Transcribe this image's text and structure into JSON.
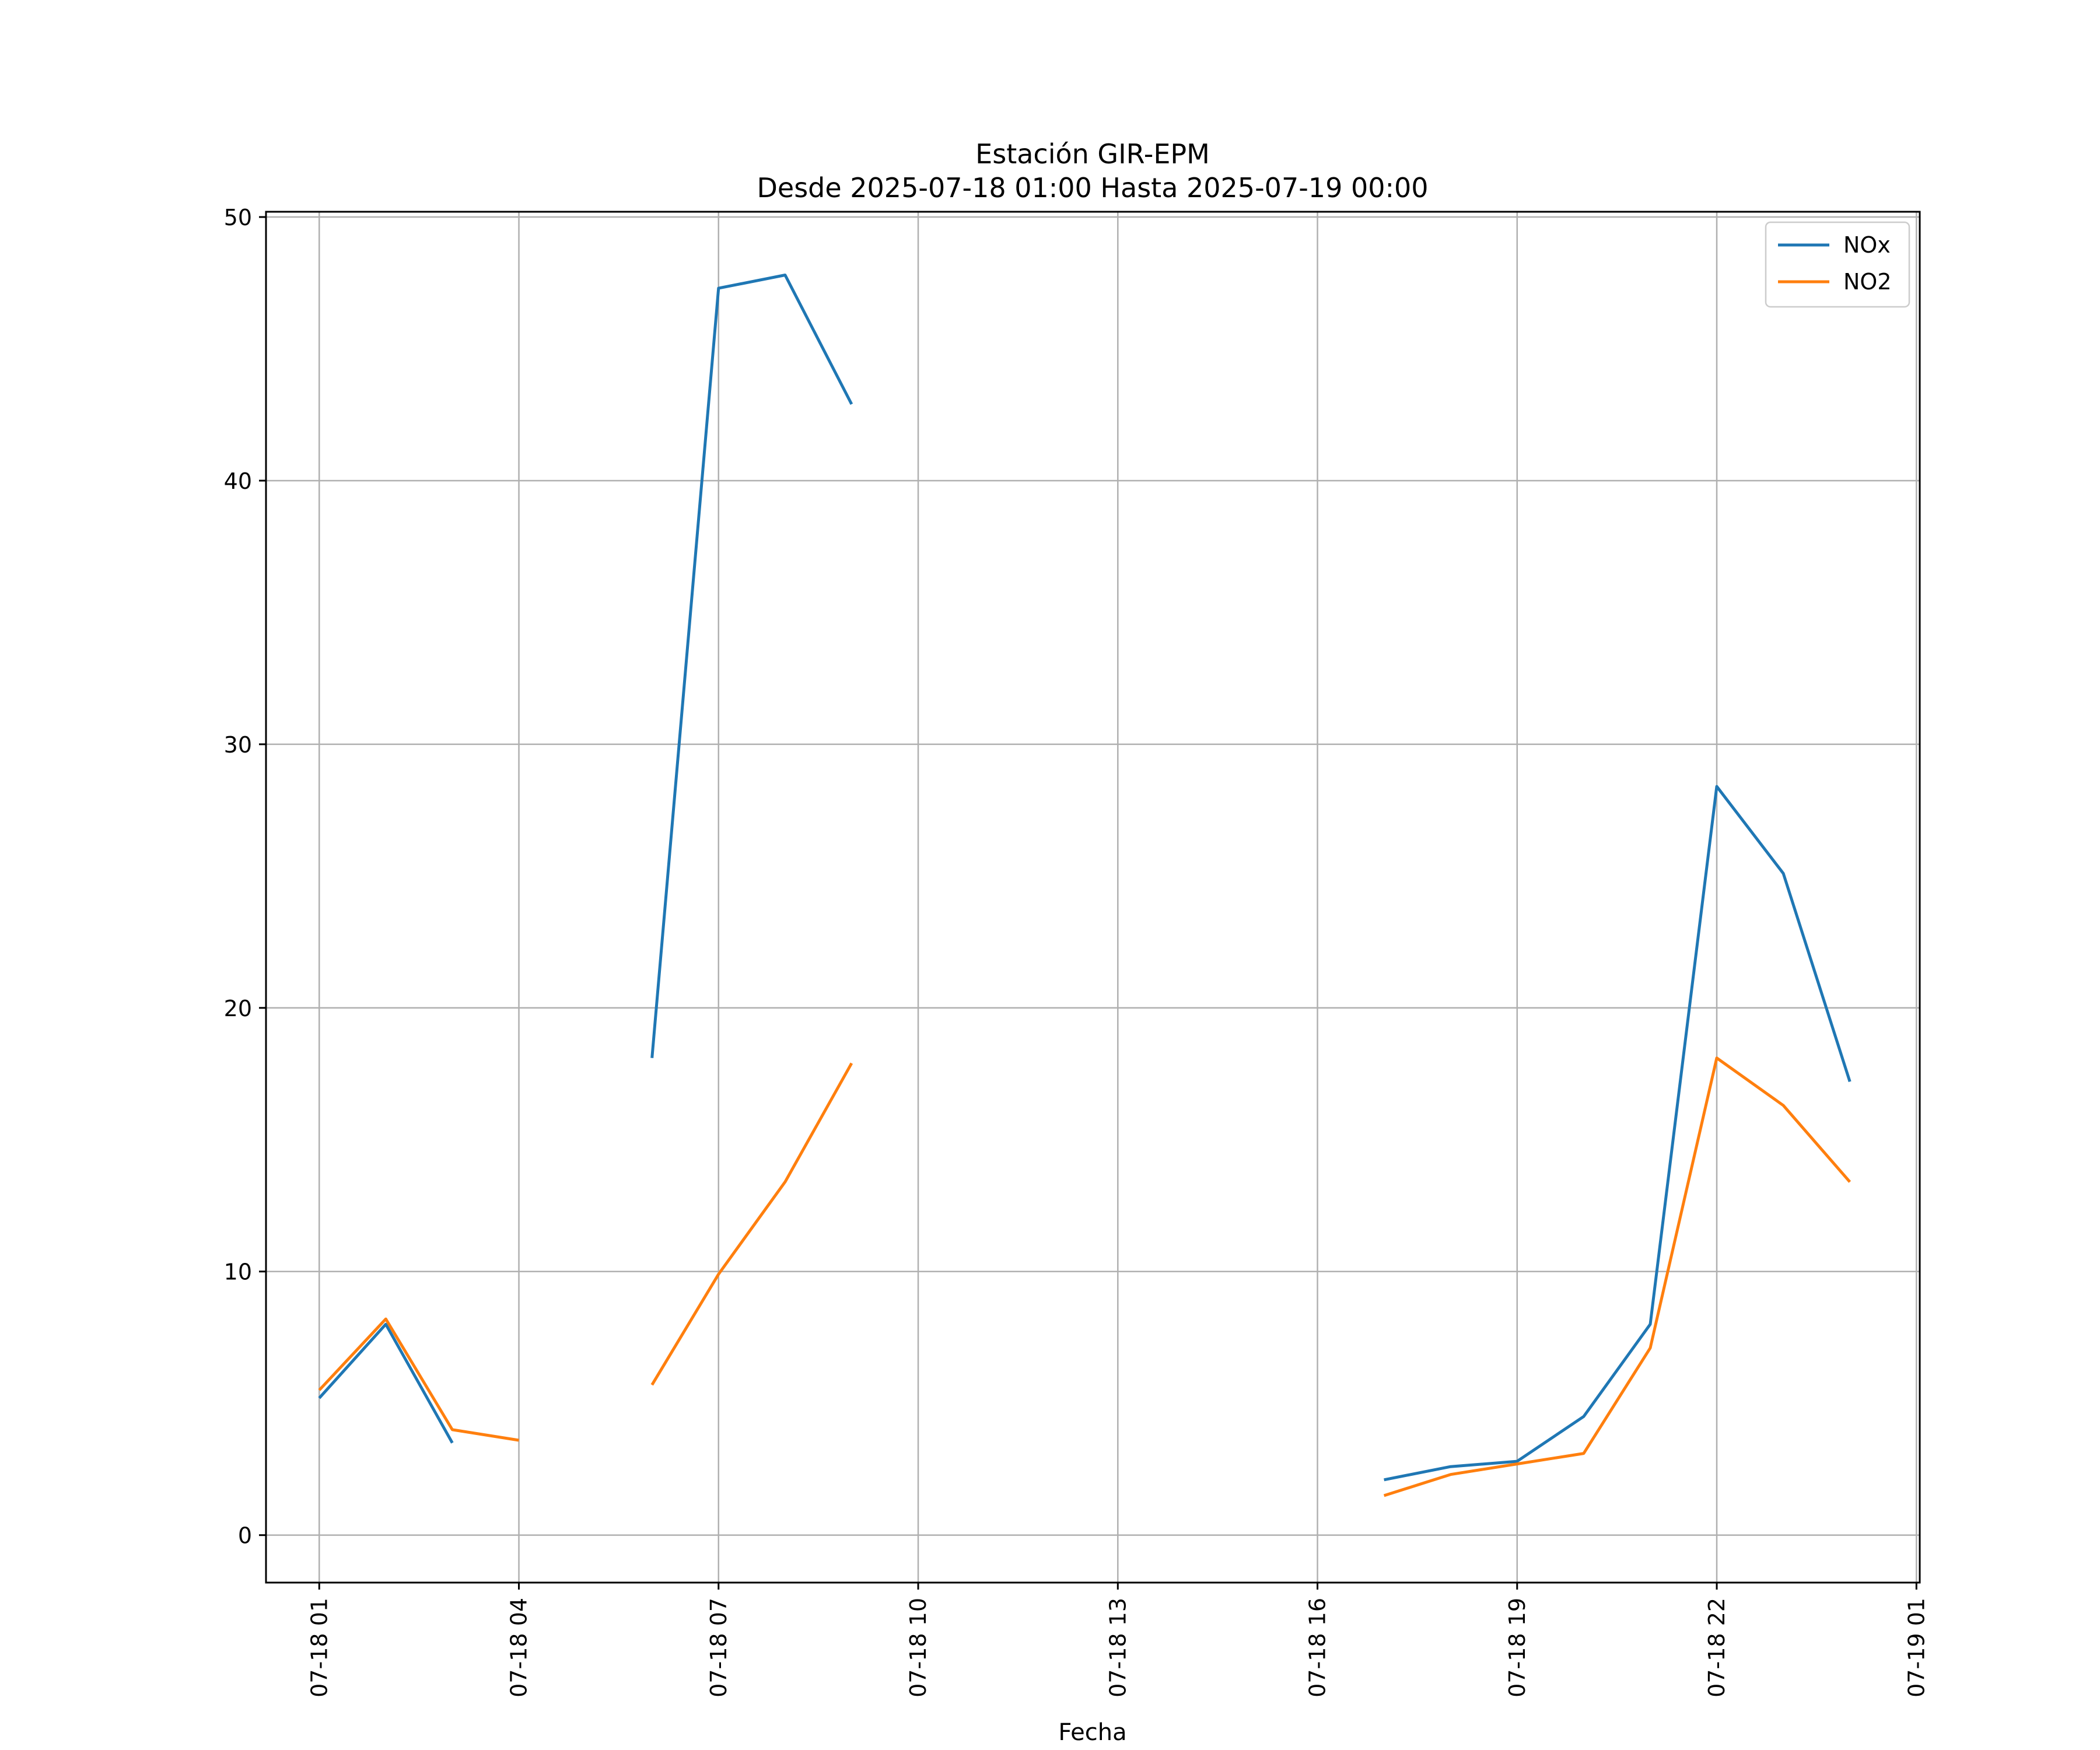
{
  "chart_data": {
    "type": "line",
    "title": "Estación GIR-EPM",
    "subtitle": "Desde 2025-07-18 01:00 Hasta 2025-07-19 00:00",
    "xlabel": "Fecha",
    "ylabel": "",
    "x": [
      "2025-07-18 01:00",
      "2025-07-18 02:00",
      "2025-07-18 03:00",
      "2025-07-18 04:00",
      "2025-07-18 05:00",
      "2025-07-18 06:00",
      "2025-07-18 07:00",
      "2025-07-18 08:00",
      "2025-07-18 09:00",
      "2025-07-18 10:00",
      "2025-07-18 11:00",
      "2025-07-18 12:00",
      "2025-07-18 13:00",
      "2025-07-18 14:00",
      "2025-07-18 15:00",
      "2025-07-18 16:00",
      "2025-07-18 17:00",
      "2025-07-18 18:00",
      "2025-07-18 19:00",
      "2025-07-18 20:00",
      "2025-07-18 21:00",
      "2025-07-18 22:00",
      "2025-07-18 23:00",
      "2025-07-19 00:00"
    ],
    "series": [
      {
        "name": "NOx",
        "color": "#1f77b4",
        "values": [
          5.2,
          8.0,
          3.5,
          null,
          null,
          18.1,
          47.3,
          47.8,
          42.9,
          null,
          null,
          null,
          null,
          null,
          null,
          null,
          2.1,
          2.6,
          2.8,
          4.5,
          8.0,
          28.4,
          25.1,
          17.2
        ]
      },
      {
        "name": "NO2",
        "color": "#ff7f0e",
        "values": [
          5.5,
          8.2,
          4.0,
          3.6,
          null,
          5.7,
          9.9,
          13.4,
          17.9,
          null,
          null,
          null,
          null,
          null,
          null,
          null,
          1.5,
          2.3,
          2.7,
          3.1,
          7.1,
          18.1,
          16.3,
          13.4
        ]
      }
    ],
    "xticks": [
      "07-18 01",
      "07-18 04",
      "07-18 07",
      "07-18 10",
      "07-18 13",
      "07-18 16",
      "07-18 19",
      "07-18 22",
      "07-19 01"
    ],
    "yticks": [
      0,
      10,
      20,
      30,
      40,
      50
    ],
    "ylim": [
      -1.8,
      50.2
    ],
    "xlim": [
      "2025-07-18 00:12",
      "2025-07-19 01:03"
    ],
    "grid": true,
    "legend_position": "top-right"
  }
}
